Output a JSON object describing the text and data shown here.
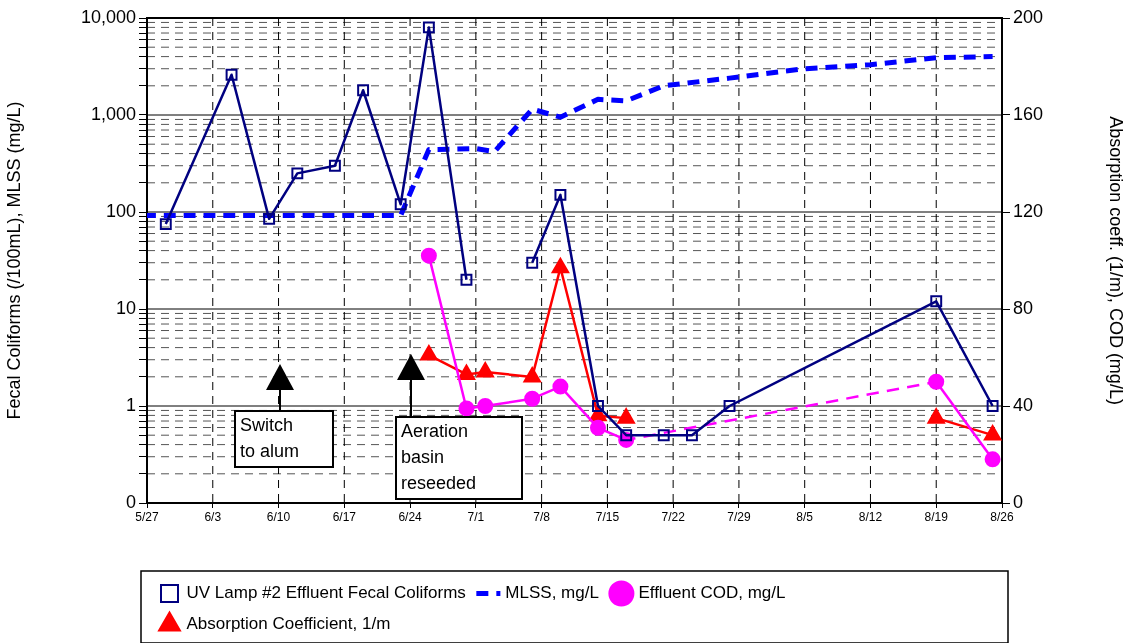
{
  "chart_data": {
    "type": "line",
    "ylabel": "Fecal Coliforms (/100mL), MLSS (mg/L)",
    "y2label": "Absorption coeff. (1/m), COD (mg/L)",
    "log": "y",
    "grid": true,
    "legend": "bottom",
    "xlim": [
      "--05-27",
      "--08-26"
    ],
    "xticks": [
      {
        "value": "--05-27",
        "label": "5/27"
      },
      {
        "value": "--06-03",
        "label": "6/3"
      },
      {
        "value": "--06-10",
        "label": "6/10"
      },
      {
        "value": "--06-17",
        "label": "6/17"
      },
      {
        "value": "--06-24",
        "label": "6/24"
      },
      {
        "value": "--07-01",
        "label": "7/1"
      },
      {
        "value": "--07-08",
        "label": "7/8"
      },
      {
        "value": "--07-15",
        "label": "7/15"
      },
      {
        "value": "--07-22",
        "label": "7/22"
      },
      {
        "value": "--07-29",
        "label": "7/29"
      },
      {
        "value": "--08-05",
        "label": "8/5"
      },
      {
        "value": "--08-12",
        "label": "8/12"
      },
      {
        "value": "--08-19",
        "label": "8/19"
      },
      {
        "value": "--08-26",
        "label": "8/26"
      }
    ],
    "ylim": [
      0.1,
      10000
    ],
    "yticks": [
      {
        "value": 0.1,
        "label": "0"
      },
      {
        "value": 0.2,
        "label": null
      },
      {
        "value": 0.3,
        "label": null
      },
      {
        "value": 0.4,
        "label": null
      },
      {
        "value": 0.5,
        "label": null
      },
      {
        "value": 0.6,
        "label": null
      },
      {
        "value": 0.7,
        "label": null
      },
      {
        "value": 0.8,
        "label": null
      },
      {
        "value": 0.9,
        "label": null
      },
      1,
      {
        "value": 2,
        "label": null
      },
      {
        "value": 3,
        "label": null
      },
      {
        "value": 4,
        "label": null
      },
      {
        "value": 5,
        "label": null
      },
      {
        "value": 6,
        "label": null
      },
      {
        "value": 7,
        "label": null
      },
      {
        "value": 8,
        "label": null
      },
      {
        "value": 9,
        "label": null
      },
      10,
      {
        "value": 20,
        "label": null
      },
      {
        "value": 30,
        "label": null
      },
      {
        "value": 40,
        "label": null
      },
      {
        "value": 50,
        "label": null
      },
      {
        "value": 60,
        "label": null
      },
      {
        "value": 70,
        "label": null
      },
      {
        "value": 80,
        "label": null
      },
      {
        "value": 90,
        "label": null
      },
      100,
      {
        "value": 200,
        "label": null
      },
      {
        "value": 300,
        "label": null
      },
      {
        "value": 400,
        "label": null
      },
      {
        "value": 500,
        "label": null
      },
      {
        "value": 600,
        "label": null
      },
      {
        "value": 700,
        "label": null
      },
      {
        "value": 800,
        "label": null
      },
      {
        "value": 900,
        "label": null
      },
      {
        "value": 1000,
        "label": "1,000"
      },
      {
        "value": 2000,
        "label": null
      },
      {
        "value": 3000,
        "label": null
      },
      {
        "value": 4000,
        "label": null
      },
      {
        "value": 5000,
        "label": null
      },
      {
        "value": 6000,
        "label": null
      },
      {
        "value": 7000,
        "label": null
      },
      {
        "value": 8000,
        "label": null
      },
      {
        "value": 9000,
        "label": null
      },
      {
        "value": 10000,
        "label": "10,000"
      }
    ],
    "y2lim": [
      0,
      200
    ],
    "y2ticks": [
      0,
      40,
      80,
      120,
      160,
      200
    ],
    "annotations": [
      "Switch to alum",
      "Aeration basin reseeded"
    ],
    "series": [
      {
        "name": "UV Lamp #2 Effluent Fecal Coliforms",
        "color": "#000080",
        "marker": "square",
        "x": [
          "--05-29",
          "--06-05",
          "--06-09",
          "--06-12",
          "--06-16",
          "--06-19",
          "--06-23",
          "--06-26",
          "--06-30",
          "--07-03",
          "--07-07",
          "--07-10",
          "--07-14",
          "--07-17",
          "--07-21",
          "--07-24",
          "--07-28",
          "--08-19",
          "--08-25"
        ],
        "values": [
          75,
          2600,
          85,
          250,
          300,
          1800,
          120,
          8000,
          20,
          null,
          30,
          150,
          1,
          0.5,
          0.5,
          0.5,
          1,
          12,
          1
        ]
      },
      {
        "name": "MLSS, mg/L",
        "color": "#0000ff",
        "marker": "none",
        "line_style": "dashed",
        "x": [
          "--05-27",
          "--06-23",
          "--06-26",
          "--07-01",
          "--07-03",
          "--07-07",
          "--07-10",
          "--07-14",
          "--07-17",
          "--07-21",
          "--07-28",
          "--08-05",
          "--08-12",
          "--08-19",
          "--08-25"
        ],
        "values": [
          92,
          92,
          440,
          450,
          420,
          1150,
          950,
          1450,
          1400,
          2000,
          2400,
          3000,
          3300,
          3900,
          4000
        ]
      },
      {
        "name": "Effluent COD, mg/L",
        "color": "#ff00ff",
        "marker": "circle",
        "axis": "y2",
        "x": [
          "--06-26",
          "--06-30",
          "--07-02",
          "--07-07",
          "--07-10",
          "--07-14",
          "--07-17"
        ],
        "values": [
          102,
          39,
          40,
          43,
          48,
          31,
          26
        ]
      },
      {
        "color": "#ff00ff",
        "line_style": "dashed",
        "axis": "y2",
        "x": [
          "--07-17",
          "--08-19"
        ],
        "values": [
          26,
          50
        ]
      },
      {
        "color": "#ff00ff",
        "marker": "circle",
        "axis": "y2",
        "x": [
          "--08-19",
          "--08-25"
        ],
        "values": [
          50,
          18
        ]
      },
      {
        "name": "Absorption Coefficient, 1/m",
        "color": "#ff0000",
        "marker": "triangle",
        "axis": "y2",
        "x": [
          "--06-26",
          "--06-30",
          "--07-02",
          "--07-07",
          "--07-10",
          "--07-14",
          "--07-17",
          "--08-01",
          "--08-19",
          "--08-25"
        ],
        "values": [
          61,
          53,
          54,
          52,
          97,
          36,
          35,
          null,
          35,
          28
        ]
      }
    ]
  }
}
